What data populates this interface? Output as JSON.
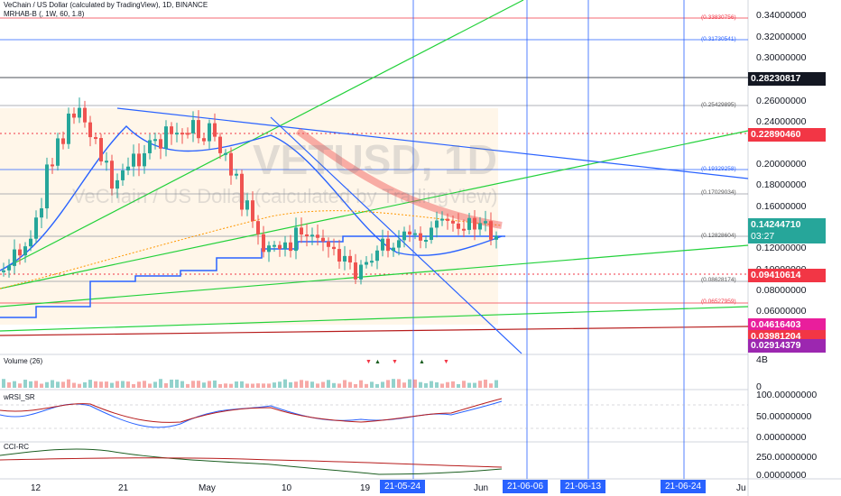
{
  "header": {
    "title": "VeChain / US Dollar (calculated by TradingView), 1D, BINANCE",
    "indicator": "MRHAB-B (, 1W, 60, 1.8)"
  },
  "watermark": {
    "symbol": "VETUSD, 1D",
    "description": "VeChain / US Dollar (calculated by TradingView)"
  },
  "price_axis": {
    "ticks": [
      "0.34000000",
      "0.32000000",
      "0.30000000",
      "0.26000000",
      "0.24000000",
      "0.20000000",
      "0.18000000",
      "0.16000000",
      "0.12000000",
      "0.10000000",
      "0.08000000",
      "0.06000000"
    ],
    "tags": [
      {
        "value": "0.28230817",
        "color": "#131722"
      },
      {
        "value": "0.22890460",
        "color": "#f23645"
      },
      {
        "value": "0.14244710",
        "sub": "03:27",
        "color": "#26a69a"
      },
      {
        "value": "0.09410614",
        "color": "#f23645"
      },
      {
        "value": "0.04616403",
        "color": "#e91e9c"
      },
      {
        "value": "0.03981204",
        "color": "#f23645"
      },
      {
        "value": "0.02914379",
        "color": "#9c27b0"
      }
    ]
  },
  "fib_labels": [
    "(0.33830756)",
    "(0.31730541)",
    "(0.25429895)",
    "(0.19329258)",
    "(0.17029034)",
    "(0.12828604)",
    "(0.08628174)",
    "(0.06527959)"
  ],
  "volume": {
    "label": "Volume (26)",
    "ticks": [
      "4B",
      "0"
    ]
  },
  "wrsi": {
    "label": "wRSI_SR",
    "ticks": [
      "100.00000000",
      "50.00000000",
      "0.00000000"
    ]
  },
  "cci": {
    "label": "CCI-RC",
    "ticks": [
      "250.00000000",
      "0.00000000"
    ]
  },
  "time_axis": {
    "labels": [
      "12",
      "21",
      "May",
      "10",
      "19",
      "Jun",
      "Ju"
    ],
    "highlights": [
      "21-05-24",
      "21-06-06",
      "21-06-13",
      "21-06-24"
    ]
  },
  "colors": {
    "up": "#26a69a",
    "down": "#ef5350",
    "fib_red": "#f23645",
    "trend_green": "#22d13a",
    "trend_blue": "#2962ff",
    "highlight": "#2962ff"
  }
}
